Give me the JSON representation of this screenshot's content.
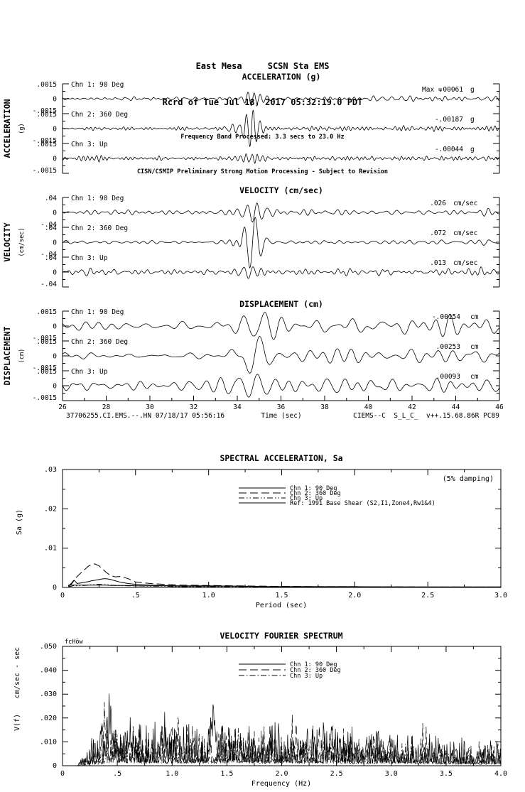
{
  "header": {
    "line1": "East Mesa     SCSN Sta EMS",
    "line2": "Rcrd of Tue Jul 18, 2017 05:32:19.0 PDT",
    "line3": "Frequency Band Processed: 3.3 secs to 23.0 Hz",
    "line4": "CISN/CSMIP Preliminary Strong Motion Processing - Subject to Revision"
  },
  "footer": {
    "left": "37706255.CI.EMS.--.HN 07/18/17 05:56:16",
    "right": "CIEMS--C  S_L_C_  v++.15.68.86R PC89"
  },
  "colors": {
    "ink": "#000000",
    "paper": "#ffffff"
  },
  "chart_data": [
    {
      "type": "line",
      "id": "time-series-triptych",
      "x": {
        "label": "Time (sec)",
        "min": 26,
        "max": 46,
        "major_ticks": [
          26,
          28,
          30,
          32,
          34,
          36,
          38,
          40,
          42,
          44,
          46
        ]
      },
      "sections": [
        {
          "title": "ACCELERATION (g)",
          "side_label": "ACCELERATION",
          "side_unit": "(g)",
          "ylim": 0.0015,
          "ylabels": {
            "pos": ".0015",
            "zero": "0",
            "neg": "-.0015"
          },
          "channels": [
            {
              "label": "Chn 1: 90 Deg",
              "max_prefix": "Max =",
              "max_value": ".00061",
              "max_unit": "g",
              "gen": {
                "seed": 101,
                "noise": 0.00013,
                "fmin": 2,
                "fmax": 6,
                "late": 0.6,
                "burst": {
                  "amp": 0.0006,
                  "t": 34.7,
                  "w": 0.5,
                  "f": 3.5
                }
              }
            },
            {
              "label": "Chn 2: 360 Deg",
              "max_value": "-.00187",
              "max_unit": "g",
              "gen": {
                "seed": 102,
                "noise": 0.0001,
                "fmin": 2,
                "fmax": 6,
                "late": 0.5,
                "burst": {
                  "amp": 0.0019,
                  "t": 34.65,
                  "w": 0.3,
                  "f": 3.2
                },
                "burst2": {
                  "amp": 0.0004,
                  "t": 33.7,
                  "w": 0.2,
                  "f": 3
                }
              }
            },
            {
              "label": "Chn 3: Up",
              "max_value": "-.00044",
              "max_unit": "g",
              "gen": {
                "seed": 103,
                "noise": 0.00014,
                "fmin": 2.5,
                "fmax": 7,
                "late": 0.3,
                "burst": {
                  "amp": 0.00042,
                  "t": 34.6,
                  "w": 0.5,
                  "f": 4
                },
                "burst2": {
                  "amp": 0.00025,
                  "t": 27.3,
                  "w": 0.6,
                  "f": 5
                }
              }
            }
          ]
        },
        {
          "title": "VELOCITY (cm/sec)",
          "side_label": "VELOCITY",
          "side_unit": "(cm/sec)",
          "ylim": 0.04,
          "ylabels": {
            "pos": ".04",
            "zero": "0",
            "neg": "-.04"
          },
          "channels": [
            {
              "label": "Chn 1: 90 Deg",
              "max_value": ".026",
              "max_unit": "cm/sec",
              "gen": {
                "seed": 201,
                "noise": 0.005,
                "fmin": 1,
                "fmax": 3.5,
                "late": 0.5,
                "burst": {
                  "amp": 0.025,
                  "t": 34.8,
                  "w": 0.55,
                  "f": 2.2
                }
              }
            },
            {
              "label": "Chn 2: 360 Deg",
              "max_value": ".072",
              "max_unit": "cm/sec",
              "gen": {
                "seed": 202,
                "noise": 0.004,
                "fmin": 1,
                "fmax": 3.5,
                "late": 0.4,
                "burst": {
                  "amp": 0.07,
                  "t": 34.7,
                  "w": 0.35,
                  "f": 1.9
                },
                "burst2": {
                  "amp": 0.012,
                  "t": 33.9,
                  "w": 0.2,
                  "f": 2.5
                }
              }
            },
            {
              "label": "Chn 3: Up",
              "max_value": ".013",
              "max_unit": "cm/sec",
              "gen": {
                "seed": 203,
                "noise": 0.0045,
                "fmin": 1.2,
                "fmax": 4,
                "late": 0.3,
                "burst": {
                  "amp": 0.013,
                  "t": 34.6,
                  "w": 0.6,
                  "f": 2.5
                },
                "burst2": {
                  "amp": 0.011,
                  "t": 27.2,
                  "w": 0.2,
                  "f": 3
                }
              }
            }
          ]
        },
        {
          "title": "DISPLACEMENT (cm)",
          "side_label": "DISPLACEMENT",
          "side_unit": "(cm)",
          "ylim": 0.0015,
          "ylabels": {
            "pos": ".0015",
            "zero": "0",
            "neg": "-.0015"
          },
          "channels": [
            {
              "label": "Chn 1: 90 Deg",
              "max_value": "-.00154",
              "max_unit": "cm",
              "gen": {
                "seed": 301,
                "noise": 0.00035,
                "fmin": 0.5,
                "fmax": 1.8,
                "late": 1.0,
                "burst": {
                  "amp": 0.0014,
                  "t": 35,
                  "w": 0.7,
                  "f": 1.1
                }
              }
            },
            {
              "label": "Chn 2: 360 Deg",
              "max_value": ".00253",
              "max_unit": "cm",
              "gen": {
                "seed": 302,
                "noise": 0.0003,
                "fmin": 0.5,
                "fmax": 1.8,
                "late": 0.8,
                "burst": {
                  "amp": 0.0024,
                  "t": 34.8,
                  "w": 0.5,
                  "f": 1
                },
                "burst2": {
                  "amp": -0.0008,
                  "t": 33.9,
                  "w": 0.3,
                  "f": 1
                }
              }
            },
            {
              "label": "Chn 3: Up",
              "max_value": ".00093",
              "max_unit": "cm",
              "gen": {
                "seed": 303,
                "noise": 0.00045,
                "fmin": 0.6,
                "fmax": 2,
                "late": 0.5,
                "burst": {
                  "amp": 0.0009,
                  "t": 34.7,
                  "w": 0.8,
                  "f": 1.2
                },
                "burst2": {
                  "amp": 0.0005,
                  "t": 27.2,
                  "w": 0.3,
                  "f": 1.5
                }
              }
            }
          ]
        }
      ]
    },
    {
      "type": "line",
      "id": "spectral-acceleration",
      "title": "SPECTRAL ACCELERATION, Sa",
      "ylabel": "Sa (g)",
      "xlabel": "Period (sec)",
      "damping_note": "(5% damping)",
      "ylim": 0.03,
      "xlim": 3,
      "yticks": [
        {
          "v": 0.03,
          "label": ".03"
        },
        {
          "v": 0.02,
          "label": ".02"
        },
        {
          "v": 0.01,
          "label": ".01"
        },
        {
          "v": 0,
          "label": "0"
        }
      ],
      "xticks": [
        {
          "v": 0,
          "label": "0"
        },
        {
          "v": 0.5,
          "label": ".5"
        },
        {
          "v": 1,
          "label": "1.0"
        },
        {
          "v": 1.5,
          "label": "1.5"
        },
        {
          "v": 2,
          "label": "2.0"
        },
        {
          "v": 2.5,
          "label": "2.5"
        },
        {
          "v": 3,
          "label": "3.0"
        }
      ],
      "periods": [
        0.04,
        0.06,
        0.08,
        0.1,
        0.12,
        0.15,
        0.18,
        0.2,
        0.22,
        0.25,
        0.28,
        0.3,
        0.33,
        0.36,
        0.4,
        0.45,
        0.5,
        0.6,
        0.7,
        0.8,
        1.0,
        1.2,
        1.4,
        1.7,
        2.0,
        2.5,
        3.0
      ],
      "series": [
        {
          "name": "Chn 1: 90 Deg",
          "dash": "",
          "values": [
            0.0003,
            0.0008,
            0.0018,
            0.001,
            0.0011,
            0.0013,
            0.0015,
            0.0017,
            0.0018,
            0.002,
            0.0022,
            0.0022,
            0.002,
            0.0017,
            0.0013,
            0.001,
            0.0008,
            0.0006,
            0.0005,
            0.0004,
            0.0004,
            0.0003,
            0.0002,
            0.0002,
            0.0001,
            0.0001,
            0.0001
          ]
        },
        {
          "name": "Chn 2: 360 Deg",
          "dash": "11,5",
          "values": [
            0.0004,
            0.001,
            0.002,
            0.0028,
            0.0035,
            0.0045,
            0.0055,
            0.0058,
            0.006,
            0.0055,
            0.0045,
            0.0038,
            0.003,
            0.0027,
            0.0028,
            0.0022,
            0.0014,
            0.001,
            0.0008,
            0.0006,
            0.0005,
            0.0004,
            0.0003,
            0.0002,
            0.0002,
            0.0001,
            0.0001
          ]
        },
        {
          "name": "Chn 3: Up",
          "dash": "8,3,1.5,3,1.5,3",
          "values": [
            0.0002,
            0.0003,
            0.0005,
            0.0004,
            0.0005,
            0.0005,
            0.0006,
            0.0007,
            0.0007,
            0.0008,
            0.0007,
            0.0007,
            0.0006,
            0.0005,
            0.0005,
            0.0004,
            0.0004,
            0.0003,
            0.0003,
            0.0002,
            0.0002,
            0.0002,
            0.0001,
            0.0001,
            0.0001,
            0.0001,
            0.0001
          ]
        },
        {
          "name": "Ref: 1991 Base Shear (S2,I1,Zone4,Rw1&4)",
          "dash": "",
          "values": [
            0.0006,
            0.0006,
            0.0006,
            0.0006,
            0.0006,
            0.0006,
            0.0006,
            0.0006,
            0.0006,
            0.0006,
            0.0006,
            0.0006,
            0.0005,
            0.0005,
            0.0005,
            0.0005,
            0.0004,
            0.0004,
            0.0004,
            0.0003,
            0.0003,
            0.0003,
            0.0002,
            0.0002,
            0.0002,
            0.0001,
            0.0001
          ]
        }
      ]
    },
    {
      "type": "line",
      "id": "velocity-fourier-spectrum",
      "title": "VELOCITY FOURIER SPECTRUM",
      "note": "fcHöw",
      "ylabel_units": "cm/sec - sec",
      "ylabel": "V(f)",
      "xlabel": "Frequency (Hz)",
      "ylim": 0.05,
      "xlim": 4,
      "yticks": [
        {
          "v": 0.05,
          "label": ".050"
        },
        {
          "v": 0.04,
          "label": ".040"
        },
        {
          "v": 0.03,
          "label": ".030"
        },
        {
          "v": 0.02,
          "label": ".020"
        },
        {
          "v": 0.01,
          "label": ".010"
        },
        {
          "v": 0,
          "label": "0"
        }
      ],
      "xticks": [
        {
          "v": 0,
          "label": "0"
        },
        {
          "v": 0.5,
          "label": ".5"
        },
        {
          "v": 1,
          "label": "1.0"
        },
        {
          "v": 1.5,
          "label": "1.5"
        },
        {
          "v": 2,
          "label": "2.0"
        },
        {
          "v": 2.5,
          "label": "2.5"
        },
        {
          "v": 3,
          "label": "3.0"
        },
        {
          "v": 3.5,
          "label": "3.5"
        },
        {
          "v": 4,
          "label": "4.0"
        }
      ],
      "series": [
        {
          "name": "Chn 1: 90 Deg",
          "dash": "",
          "gen": {
            "seed": 71,
            "f0": 0.13,
            "f1": 0.34,
            "base": 0.0115,
            "spikes": [
              {
                "f": 0.44,
                "a": 0.0265,
                "w": 0.02
              },
              {
                "f": 1.38,
                "a": 0.028,
                "w": 0.016
              },
              {
                "f": 0.62,
                "a": 0.013,
                "w": 0.025
              },
              {
                "f": 0.92,
                "a": 0.011,
                "w": 0.02
              },
              {
                "f": 2.45,
                "a": 0.009,
                "w": 0.02
              }
            ]
          }
        },
        {
          "name": "Chn 2: 360 Deg",
          "dash": "11,5",
          "gen": {
            "seed": 72,
            "f0": 0.14,
            "f1": 0.36,
            "base": 0.0105,
            "spikes": [
              {
                "f": 0.38,
                "a": 0.019,
                "w": 0.02
              },
              {
                "f": 1.05,
                "a": 0.012,
                "w": 0.02
              },
              {
                "f": 2.1,
                "a": 0.011,
                "w": 0.02
              },
              {
                "f": 3.3,
                "a": 0.007,
                "w": 0.03
              }
            ]
          }
        },
        {
          "name": "Chn 3: Up",
          "dash": "8,3,1.5,3",
          "gen": {
            "seed": 73,
            "f0": 0.15,
            "f1": 0.4,
            "base": 0.0075,
            "spikes": [
              {
                "f": 0.5,
                "a": 0.008,
                "w": 0.03
              },
              {
                "f": 1.6,
                "a": 0.006,
                "w": 0.03
              }
            ]
          }
        }
      ]
    }
  ]
}
